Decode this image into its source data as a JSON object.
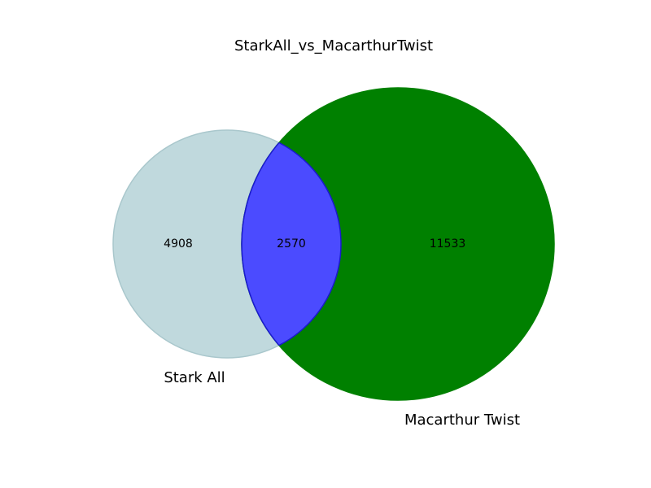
{
  "title": "StarkAll_vs_MacarthurTwist",
  "sets": [
    {
      "name": "Stark All",
      "only_count": "4908",
      "color": "#c0d9dd",
      "edge": "#a9c7cc"
    },
    {
      "name": "Macarthur Twist",
      "only_count": "11533",
      "color": "#008000",
      "edge": "#008000"
    }
  ],
  "intersection": {
    "count": "2570",
    "color": "#4b4bff",
    "edge": "#1a1acc"
  }
}
